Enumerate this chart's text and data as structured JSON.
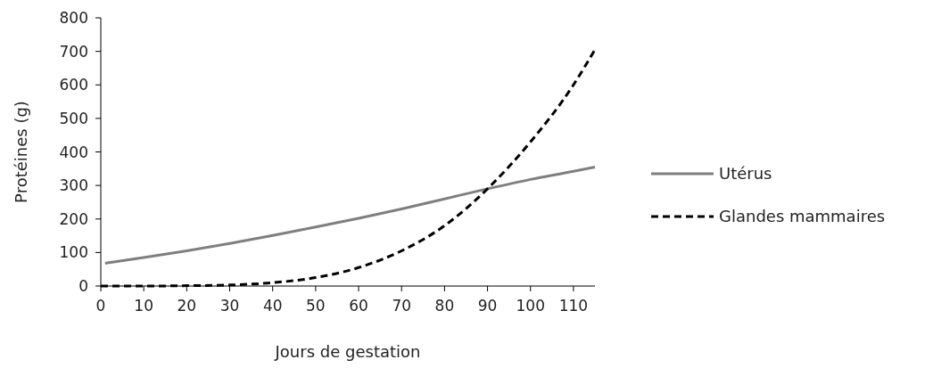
{
  "chart_data": {
    "type": "line",
    "xlabel": "Jours de gestation",
    "ylabel": "Protéines (g)",
    "xlim": [
      0,
      115
    ],
    "xticks": [
      0,
      10,
      20,
      30,
      40,
      50,
      60,
      70,
      80,
      90,
      100,
      110
    ],
    "ylim": [
      0,
      800
    ],
    "yticks": [
      0,
      100,
      200,
      300,
      400,
      500,
      600,
      700,
      800
    ],
    "grid": false,
    "legend": "right",
    "series": [
      {
        "name": "Utérus",
        "color": "#7f7f7f",
        "line_style": "solid",
        "x": [
          1,
          10,
          20,
          30,
          40,
          50,
          60,
          70,
          80,
          90,
          100,
          110,
          115
        ],
        "values": [
          68,
          85,
          105,
          127,
          151,
          176,
          202,
          230,
          260,
          290,
          318,
          342,
          355
        ]
      },
      {
        "name": "Glandes mammaires",
        "color": "#000000",
        "line_style": "dashed",
        "x": [
          0,
          10,
          20,
          30,
          40,
          50,
          60,
          70,
          80,
          90,
          100,
          110,
          115
        ],
        "values": [
          0,
          0,
          1,
          3,
          10,
          25,
          55,
          105,
          180,
          290,
          430,
          600,
          705
        ]
      }
    ]
  }
}
